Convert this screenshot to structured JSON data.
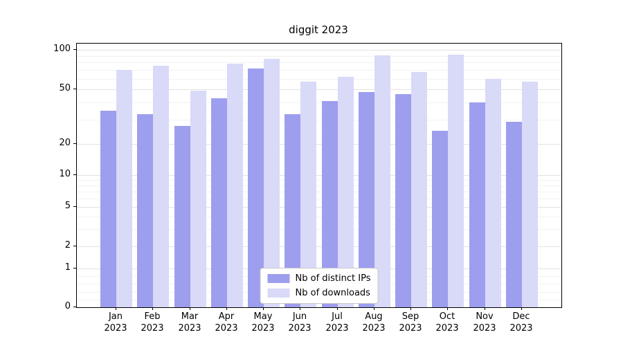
{
  "chart_data": {
    "type": "bar",
    "title": "diggit 2023",
    "yscale": "symlog",
    "yticks": [
      0,
      1,
      2,
      5,
      10,
      20,
      50,
      100
    ],
    "minor_gridline_values": [
      0.2,
      0.4,
      0.6,
      0.8,
      3,
      4,
      6,
      7,
      8,
      9,
      30,
      40,
      60,
      70,
      80,
      90
    ],
    "ylim": [
      0,
      110
    ],
    "grid": "horizontal major and minor gridlines, light gray",
    "legend_position": "lower center",
    "categories": [
      "Jan 2023",
      "Feb 2023",
      "Mar 2023",
      "Apr 2023",
      "May 2023",
      "Jun 2023",
      "Jul 2023",
      "Aug 2023",
      "Sep 2023",
      "Oct 2023",
      "Nov 2023",
      "Dec 2023"
    ],
    "series": [
      {
        "name": "Nb of distinct IPs",
        "color": "#9e9eee",
        "values": [
          35,
          33,
          27,
          43,
          72,
          33,
          41,
          48,
          46,
          25,
          40,
          29
        ]
      },
      {
        "name": "Nb of downloads",
        "color": "#d9d9f8",
        "values": [
          70,
          76,
          49,
          78,
          85,
          57,
          62,
          91,
          68,
          92,
          60,
          57
        ]
      }
    ]
  }
}
